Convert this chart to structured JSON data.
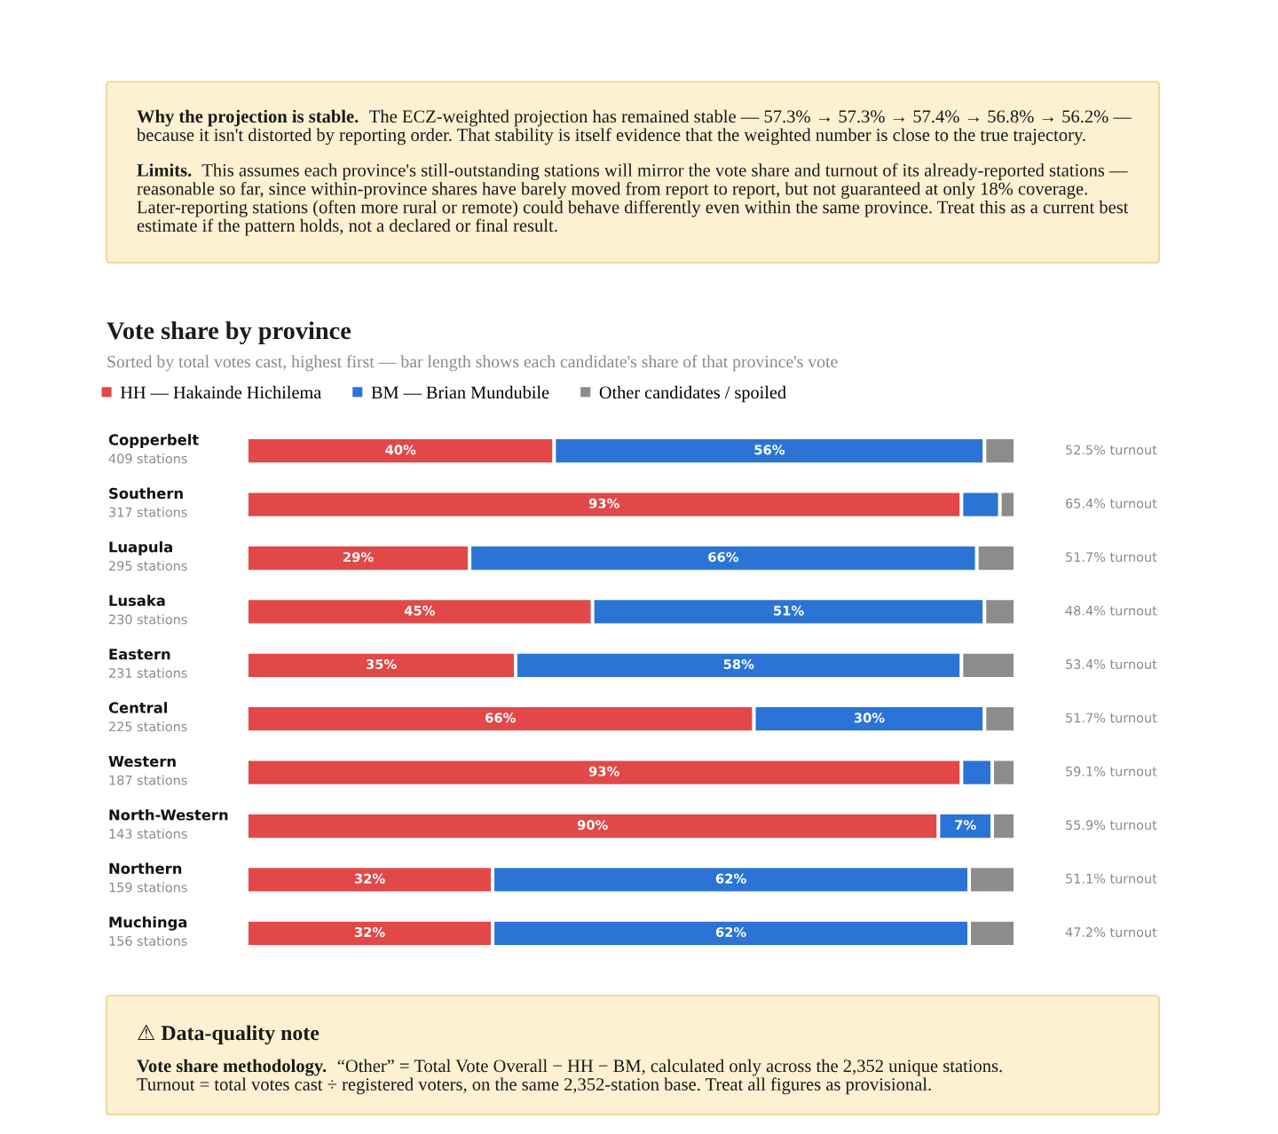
{
  "chart_data": {
    "type": "bar",
    "orientation": "horizontal",
    "stacked": true,
    "title": "Vote share by province",
    "subtitle": "Sorted by total votes cast, highest first — bar length shows each candidate's share of that province's vote",
    "categories": [
      "Copperbelt\n409 stations",
      "Southern\n317 stations",
      "Luapula\n295 stations",
      "Lusaka\n230 stations",
      "Eastern\n231 stations",
      "Central\n225 stations",
      "Western\n187 stations",
      "North-Western\n143 stations",
      "Northern\n159 stations",
      "Muchinga\n156 stations"
    ],
    "series": [
      {
        "name": "HH — Hakainde Hichilema",
        "color": "#e24848",
        "values": [
          40,
          93,
          29,
          45,
          35,
          66,
          93,
          90,
          32,
          32
        ],
        "value_labels": [
          "40%",
          "93%",
          "29%",
          "45%",
          "35%",
          "66%",
          "93%",
          "90%",
          "32%",
          "32%"
        ]
      },
      {
        "name": "BM — Brian Mundubile",
        "color": "#2b74d6",
        "values": [
          56,
          5,
          66,
          51,
          58,
          30,
          4,
          7,
          62,
          62
        ],
        "value_labels": [
          "56%",
          null,
          "66%",
          "51%",
          "58%",
          "30%",
          null,
          "7%",
          "62%",
          "62%"
        ]
      },
      {
        "name": "Other candidates / spoiled",
        "color": "#8c8c8c",
        "values": [
          4,
          2,
          5,
          4,
          7,
          4,
          3,
          3,
          6,
          6
        ]
      }
    ],
    "legend": "top left",
    "tick_labels": "y",
    "annotations": [
      "Why the projection is stable. The ECZ-weighted projection has remained stable — 57.3% → 57.3% → 57.4% → 56.8% → 56.2% — because it isn't distorted by reporting order. That stability is itself evidence that the weighted number is close to the true trajectory.",
      "Limits. This assumes each province's still-outstanding stations will mirror the vote share and turnout of its already-reported stations — reasonable so far, since within-province shares have barely moved from report to report, but not guaranteed at only 18% coverage. Later-reporting stations (often more rural or remote) could behave differently even within the same province. Treat this as a current best estimate if the pattern holds, not a declared or final result.",
      "52.5% turnout",
      "65.4% turnout",
      "51.7% turnout",
      "48.4% turnout",
      "53.4% turnout",
      "51.7% turnout",
      "59.1% turnout",
      "55.9% turnout",
      "51.1% turnout",
      "47.2% turnout",
      "⚠ Data-quality note",
      "Vote share methodology. “Other” = Total Vote Overall − HH − BM, calculated only across the 2,352 unique stations.\nTurnout = total votes cast ÷ registered voters, on the same 2,352-station base. Treat all figures as provisional."
    ]
  }
}
